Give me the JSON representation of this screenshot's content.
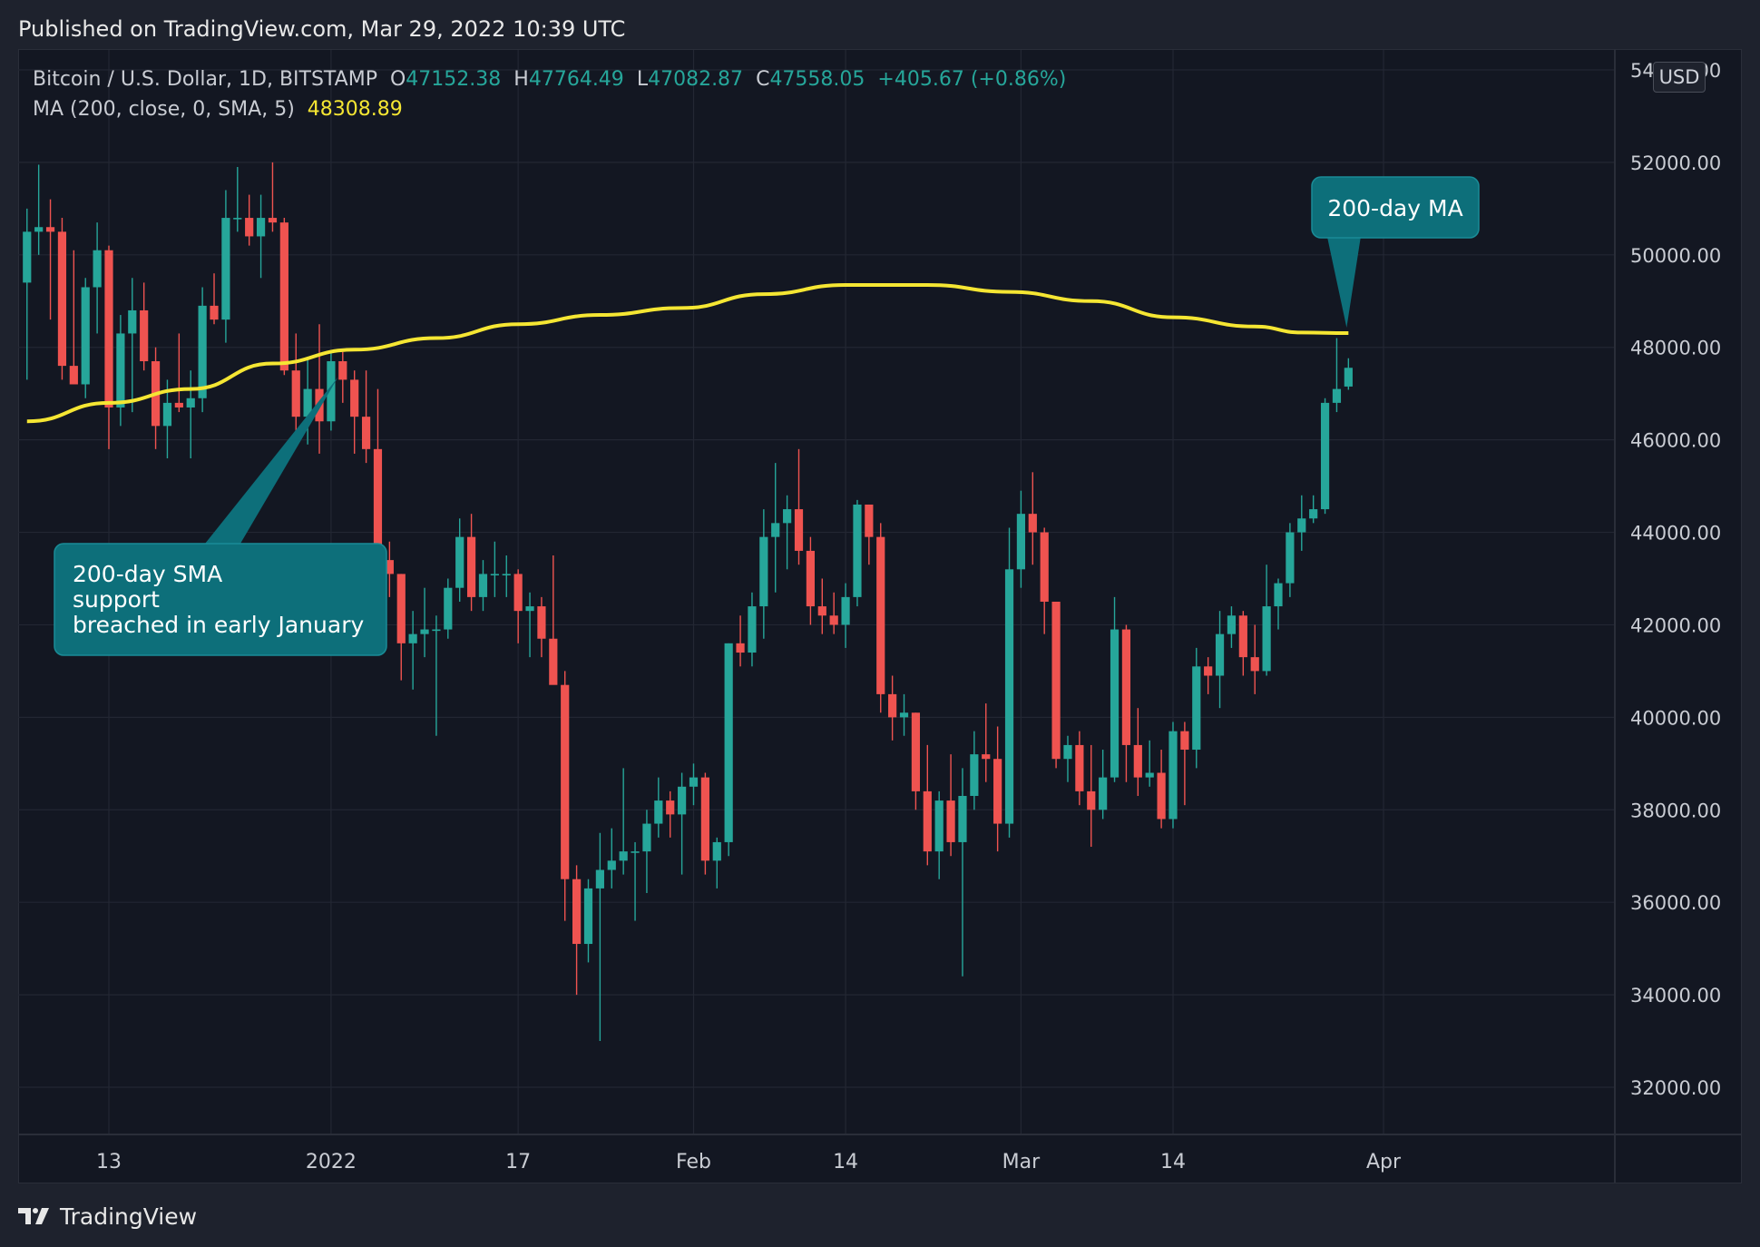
{
  "header": {
    "published": "Published on TradingView.com, Mar 29, 2022 10:39 UTC"
  },
  "legend": {
    "symbol": "Bitcoin / U.S. Dollar, 1D, BITSTAMP",
    "open_label": "O",
    "open": "47152.38",
    "high_label": "H",
    "high": "47764.49",
    "low_label": "L",
    "low": "47082.87",
    "close_label": "C",
    "close": "47558.05",
    "change": "+405.67 (+0.86%)",
    "ma_label": "MA (200, close, 0, SMA, 5)",
    "ma_value": "48308.89"
  },
  "currency": "USD",
  "footer": {
    "brand": "TradingView"
  },
  "colors": {
    "up": "#26a69a",
    "down": "#ef5350",
    "ma": "#f5e633",
    "annotation": "#0d6f7a",
    "background": "#131722",
    "grid": "#232733"
  },
  "chart_data": {
    "type": "candlestick",
    "title": "Bitcoin / U.S. Dollar, 1D, BITSTAMP",
    "ylim": [
      31000,
      54500
    ],
    "y_ticks": [
      32000,
      34000,
      36000,
      38000,
      40000,
      42000,
      44000,
      46000,
      48000,
      50000,
      52000,
      54000
    ],
    "y_tick_labels": [
      "32000.00",
      "34000.00",
      "36000.00",
      "38000.00",
      "40000.00",
      "42000.00",
      "44000.00",
      "46000.00",
      "48000.00",
      "50000.00",
      "52000.00",
      "54000.00"
    ],
    "x_ticks": [
      {
        "label": "13",
        "date": "2021-12-13"
      },
      {
        "label": "2022",
        "date": "2022-01-01"
      },
      {
        "label": "17",
        "date": "2022-01-17"
      },
      {
        "label": "Feb",
        "date": "2022-02-01"
      },
      {
        "label": "14",
        "date": "2022-02-14"
      },
      {
        "label": "Mar",
        "date": "2022-03-01"
      },
      {
        "label": "14",
        "date": "2022-03-14"
      },
      {
        "label": "Apr",
        "date": "2022-04-01"
      }
    ],
    "candles": [
      {
        "date": "2021-12-06",
        "o": 49400,
        "h": 51000,
        "l": 47300,
        "c": 50500
      },
      {
        "date": "2021-12-07",
        "o": 50500,
        "h": 51950,
        "l": 50000,
        "c": 50600
      },
      {
        "date": "2021-12-08",
        "o": 50600,
        "h": 51200,
        "l": 48600,
        "c": 50500
      },
      {
        "date": "2021-12-09",
        "o": 50500,
        "h": 50800,
        "l": 47300,
        "c": 47600
      },
      {
        "date": "2021-12-10",
        "o": 47600,
        "h": 50100,
        "l": 47200,
        "c": 47200
      },
      {
        "date": "2021-12-11",
        "o": 47200,
        "h": 49500,
        "l": 46900,
        "c": 49300
      },
      {
        "date": "2021-12-12",
        "o": 49300,
        "h": 50700,
        "l": 48300,
        "c": 50100
      },
      {
        "date": "2021-12-13",
        "o": 50100,
        "h": 50200,
        "l": 45800,
        "c": 46700
      },
      {
        "date": "2021-12-14",
        "o": 46700,
        "h": 48700,
        "l": 46300,
        "c": 48300
      },
      {
        "date": "2021-12-15",
        "o": 48300,
        "h": 49500,
        "l": 46600,
        "c": 48800
      },
      {
        "date": "2021-12-16",
        "o": 48800,
        "h": 49400,
        "l": 47500,
        "c": 47700
      },
      {
        "date": "2021-12-17",
        "o": 47700,
        "h": 48000,
        "l": 45800,
        "c": 46300
      },
      {
        "date": "2021-12-18",
        "o": 46300,
        "h": 47300,
        "l": 45600,
        "c": 46800
      },
      {
        "date": "2021-12-19",
        "o": 46800,
        "h": 48300,
        "l": 46600,
        "c": 46700
      },
      {
        "date": "2021-12-20",
        "o": 46700,
        "h": 47500,
        "l": 45600,
        "c": 46900
      },
      {
        "date": "2021-12-21",
        "o": 46900,
        "h": 49300,
        "l": 46600,
        "c": 48900
      },
      {
        "date": "2021-12-22",
        "o": 48900,
        "h": 49600,
        "l": 48500,
        "c": 48600
      },
      {
        "date": "2021-12-23",
        "o": 48600,
        "h": 51400,
        "l": 48100,
        "c": 50800
      },
      {
        "date": "2021-12-24",
        "o": 50800,
        "h": 51900,
        "l": 50500,
        "c": 50800
      },
      {
        "date": "2021-12-25",
        "o": 50800,
        "h": 51300,
        "l": 50200,
        "c": 50400
      },
      {
        "date": "2021-12-26",
        "o": 50400,
        "h": 51300,
        "l": 49500,
        "c": 50800
      },
      {
        "date": "2021-12-27",
        "o": 50800,
        "h": 52000,
        "l": 50500,
        "c": 50700
      },
      {
        "date": "2021-12-28",
        "o": 50700,
        "h": 50800,
        "l": 47400,
        "c": 47500
      },
      {
        "date": "2021-12-29",
        "o": 47500,
        "h": 48300,
        "l": 46200,
        "c": 46500
      },
      {
        "date": "2021-12-30",
        "o": 46500,
        "h": 47800,
        "l": 45900,
        "c": 47100
      },
      {
        "date": "2021-12-31",
        "o": 47100,
        "h": 48500,
        "l": 45700,
        "c": 46400
      },
      {
        "date": "2022-01-01",
        "o": 46400,
        "h": 47900,
        "l": 46200,
        "c": 47700
      },
      {
        "date": "2022-01-02",
        "o": 47700,
        "h": 47900,
        "l": 46800,
        "c": 47300
      },
      {
        "date": "2022-01-03",
        "o": 47300,
        "h": 47500,
        "l": 45700,
        "c": 46500
      },
      {
        "date": "2022-01-04",
        "o": 46500,
        "h": 47500,
        "l": 45500,
        "c": 45800
      },
      {
        "date": "2022-01-05",
        "o": 45800,
        "h": 47100,
        "l": 42500,
        "c": 43400
      },
      {
        "date": "2022-01-06",
        "o": 43400,
        "h": 43800,
        "l": 42600,
        "c": 43100
      },
      {
        "date": "2022-01-07",
        "o": 43100,
        "h": 43100,
        "l": 40800,
        "c": 41600
      },
      {
        "date": "2022-01-08",
        "o": 41600,
        "h": 42300,
        "l": 40600,
        "c": 41800
      },
      {
        "date": "2022-01-09",
        "o": 41800,
        "h": 42800,
        "l": 41300,
        "c": 41900
      },
      {
        "date": "2022-01-10",
        "o": 41900,
        "h": 42200,
        "l": 39600,
        "c": 41900
      },
      {
        "date": "2022-01-11",
        "o": 41900,
        "h": 43000,
        "l": 41700,
        "c": 42800
      },
      {
        "date": "2022-01-12",
        "o": 42800,
        "h": 44300,
        "l": 42500,
        "c": 43900
      },
      {
        "date": "2022-01-13",
        "o": 43900,
        "h": 44400,
        "l": 42300,
        "c": 42600
      },
      {
        "date": "2022-01-14",
        "o": 42600,
        "h": 43400,
        "l": 42300,
        "c": 43100
      },
      {
        "date": "2022-01-15",
        "o": 43100,
        "h": 43800,
        "l": 42600,
        "c": 43100
      },
      {
        "date": "2022-01-16",
        "o": 43100,
        "h": 43500,
        "l": 42600,
        "c": 43100
      },
      {
        "date": "2022-01-17",
        "o": 43100,
        "h": 43200,
        "l": 41600,
        "c": 42300
      },
      {
        "date": "2022-01-18",
        "o": 42300,
        "h": 42700,
        "l": 41300,
        "c": 42400
      },
      {
        "date": "2022-01-19",
        "o": 42400,
        "h": 42600,
        "l": 41300,
        "c": 41700
      },
      {
        "date": "2022-01-20",
        "o": 41700,
        "h": 43500,
        "l": 40800,
        "c": 40700
      },
      {
        "date": "2022-01-21",
        "o": 40700,
        "h": 41000,
        "l": 35600,
        "c": 36500
      },
      {
        "date": "2022-01-22",
        "o": 36500,
        "h": 36800,
        "l": 34000,
        "c": 35100
      },
      {
        "date": "2022-01-23",
        "o": 35100,
        "h": 36500,
        "l": 34700,
        "c": 36300
      },
      {
        "date": "2022-01-24",
        "o": 36300,
        "h": 37500,
        "l": 33000,
        "c": 36700
      },
      {
        "date": "2022-01-25",
        "o": 36700,
        "h": 37600,
        "l": 36300,
        "c": 36900
      },
      {
        "date": "2022-01-26",
        "o": 36900,
        "h": 38900,
        "l": 36600,
        "c": 37100
      },
      {
        "date": "2022-01-27",
        "o": 37100,
        "h": 37300,
        "l": 35600,
        "c": 37100
      },
      {
        "date": "2022-01-28",
        "o": 37100,
        "h": 38000,
        "l": 36200,
        "c": 37700
      },
      {
        "date": "2022-01-29",
        "o": 37700,
        "h": 38700,
        "l": 37400,
        "c": 38200
      },
      {
        "date": "2022-01-30",
        "o": 38200,
        "h": 38400,
        "l": 37400,
        "c": 37900
      },
      {
        "date": "2022-01-31",
        "o": 37900,
        "h": 38800,
        "l": 36600,
        "c": 38500
      },
      {
        "date": "2022-02-01",
        "o": 38500,
        "h": 39000,
        "l": 38100,
        "c": 38700
      },
      {
        "date": "2022-02-02",
        "o": 38700,
        "h": 38800,
        "l": 36600,
        "c": 36900
      },
      {
        "date": "2022-02-03",
        "o": 36900,
        "h": 37400,
        "l": 36300,
        "c": 37300
      },
      {
        "date": "2022-02-04",
        "o": 37300,
        "h": 41600,
        "l": 37000,
        "c": 41600
      },
      {
        "date": "2022-02-05",
        "o": 41600,
        "h": 42200,
        "l": 41100,
        "c": 41400
      },
      {
        "date": "2022-02-06",
        "o": 41400,
        "h": 42700,
        "l": 41100,
        "c": 42400
      },
      {
        "date": "2022-02-07",
        "o": 42400,
        "h": 44500,
        "l": 41700,
        "c": 43900
      },
      {
        "date": "2022-02-08",
        "o": 43900,
        "h": 45500,
        "l": 42700,
        "c": 44200
      },
      {
        "date": "2022-02-09",
        "o": 44200,
        "h": 44800,
        "l": 43200,
        "c": 44500
      },
      {
        "date": "2022-02-10",
        "o": 44500,
        "h": 45800,
        "l": 43300,
        "c": 43600
      },
      {
        "date": "2022-02-11",
        "o": 43600,
        "h": 43900,
        "l": 42000,
        "c": 42400
      },
      {
        "date": "2022-02-12",
        "o": 42400,
        "h": 43000,
        "l": 41800,
        "c": 42200
      },
      {
        "date": "2022-02-13",
        "o": 42200,
        "h": 42700,
        "l": 41800,
        "c": 42000
      },
      {
        "date": "2022-02-14",
        "o": 42000,
        "h": 42900,
        "l": 41500,
        "c": 42600
      },
      {
        "date": "2022-02-15",
        "o": 42600,
        "h": 44700,
        "l": 42400,
        "c": 44600
      },
      {
        "date": "2022-02-16",
        "o": 44600,
        "h": 44600,
        "l": 43300,
        "c": 43900
      },
      {
        "date": "2022-02-17",
        "o": 43900,
        "h": 44200,
        "l": 40100,
        "c": 40500
      },
      {
        "date": "2022-02-18",
        "o": 40500,
        "h": 40900,
        "l": 39500,
        "c": 40000
      },
      {
        "date": "2022-02-19",
        "o": 40000,
        "h": 40500,
        "l": 39600,
        "c": 40100
      },
      {
        "date": "2022-02-20",
        "o": 40100,
        "h": 40100,
        "l": 38000,
        "c": 38400
      },
      {
        "date": "2022-02-21",
        "o": 38400,
        "h": 39400,
        "l": 36800,
        "c": 37100
      },
      {
        "date": "2022-02-22",
        "o": 37100,
        "h": 38400,
        "l": 36500,
        "c": 38200
      },
      {
        "date": "2022-02-23",
        "o": 38200,
        "h": 39200,
        "l": 37000,
        "c": 37300
      },
      {
        "date": "2022-02-24",
        "o": 37300,
        "h": 38900,
        "l": 34400,
        "c": 38300
      },
      {
        "date": "2022-02-25",
        "o": 38300,
        "h": 39700,
        "l": 38000,
        "c": 39200
      },
      {
        "date": "2022-02-26",
        "o": 39200,
        "h": 40300,
        "l": 38600,
        "c": 39100
      },
      {
        "date": "2022-02-27",
        "o": 39100,
        "h": 39800,
        "l": 37100,
        "c": 37700
      },
      {
        "date": "2022-02-28",
        "o": 37700,
        "h": 44100,
        "l": 37400,
        "c": 43200
      },
      {
        "date": "2022-03-01",
        "o": 43200,
        "h": 44900,
        "l": 42800,
        "c": 44400
      },
      {
        "date": "2022-03-02",
        "o": 44400,
        "h": 45300,
        "l": 43300,
        "c": 44000
      },
      {
        "date": "2022-03-03",
        "o": 44000,
        "h": 44100,
        "l": 41800,
        "c": 42500
      },
      {
        "date": "2022-03-04",
        "o": 42500,
        "h": 42500,
        "l": 38900,
        "c": 39100
      },
      {
        "date": "2022-03-05",
        "o": 39100,
        "h": 39600,
        "l": 38600,
        "c": 39400
      },
      {
        "date": "2022-03-06",
        "o": 39400,
        "h": 39700,
        "l": 38100,
        "c": 38400
      },
      {
        "date": "2022-03-07",
        "o": 38400,
        "h": 39400,
        "l": 37200,
        "c": 38000
      },
      {
        "date": "2022-03-08",
        "o": 38000,
        "h": 39300,
        "l": 37800,
        "c": 38700
      },
      {
        "date": "2022-03-09",
        "o": 38700,
        "h": 42600,
        "l": 38600,
        "c": 41900
      },
      {
        "date": "2022-03-10",
        "o": 41900,
        "h": 42000,
        "l": 38600,
        "c": 39400
      },
      {
        "date": "2022-03-11",
        "o": 39400,
        "h": 40200,
        "l": 38300,
        "c": 38700
      },
      {
        "date": "2022-03-12",
        "o": 38700,
        "h": 39500,
        "l": 38500,
        "c": 38800
      },
      {
        "date": "2022-03-13",
        "o": 38800,
        "h": 39300,
        "l": 37600,
        "c": 37800
      },
      {
        "date": "2022-03-14",
        "o": 37800,
        "h": 39900,
        "l": 37600,
        "c": 39700
      },
      {
        "date": "2022-03-15",
        "o": 39700,
        "h": 39900,
        "l": 38100,
        "c": 39300
      },
      {
        "date": "2022-03-16",
        "o": 39300,
        "h": 41500,
        "l": 38900,
        "c": 41100
      },
      {
        "date": "2022-03-17",
        "o": 41100,
        "h": 41300,
        "l": 40500,
        "c": 40900
      },
      {
        "date": "2022-03-18",
        "o": 40900,
        "h": 42300,
        "l": 40200,
        "c": 41800
      },
      {
        "date": "2022-03-19",
        "o": 41800,
        "h": 42400,
        "l": 41500,
        "c": 42200
      },
      {
        "date": "2022-03-20",
        "o": 42200,
        "h": 42300,
        "l": 40900,
        "c": 41300
      },
      {
        "date": "2022-03-21",
        "o": 41300,
        "h": 42000,
        "l": 40500,
        "c": 41000
      },
      {
        "date": "2022-03-22",
        "o": 41000,
        "h": 43300,
        "l": 40900,
        "c": 42400
      },
      {
        "date": "2022-03-23",
        "o": 42400,
        "h": 43000,
        "l": 41900,
        "c": 42900
      },
      {
        "date": "2022-03-24",
        "o": 42900,
        "h": 44200,
        "l": 42600,
        "c": 44000
      },
      {
        "date": "2022-03-25",
        "o": 44000,
        "h": 44800,
        "l": 43600,
        "c": 44300
      },
      {
        "date": "2022-03-26",
        "o": 44300,
        "h": 44800,
        "l": 44200,
        "c": 44500
      },
      {
        "date": "2022-03-27",
        "o": 44500,
        "h": 46900,
        "l": 44400,
        "c": 46800
      },
      {
        "date": "2022-03-28",
        "o": 46800,
        "h": 48200,
        "l": 46600,
        "c": 47100
      },
      {
        "date": "2022-03-29",
        "o": 47152.38,
        "h": 47764.49,
        "l": 47082.87,
        "c": 47558.05
      }
    ],
    "ma_series": {
      "name": "MA (200, close, 0, SMA, 5)",
      "points": [
        [
          "2021-12-06",
          46400
        ],
        [
          "2021-12-13",
          46800
        ],
        [
          "2021-12-20",
          47100
        ],
        [
          "2021-12-27",
          47650
        ],
        [
          "2022-01-03",
          47950
        ],
        [
          "2022-01-10",
          48200
        ],
        [
          "2022-01-17",
          48500
        ],
        [
          "2022-01-24",
          48700
        ],
        [
          "2022-01-31",
          48850
        ],
        [
          "2022-02-07",
          49150
        ],
        [
          "2022-02-14",
          49350
        ],
        [
          "2022-02-21",
          49350
        ],
        [
          "2022-02-28",
          49200
        ],
        [
          "2022-03-07",
          49000
        ],
        [
          "2022-03-14",
          48650
        ],
        [
          "2022-03-21",
          48450
        ],
        [
          "2022-03-25",
          48320
        ],
        [
          "2022-03-29",
          48309
        ]
      ]
    },
    "annotations": [
      {
        "text": [
          "200-day MA"
        ],
        "target": {
          "date": "2022-03-29",
          "price": 48309
        }
      },
      {
        "text": [
          "200-day SMA",
          "support",
          "breached in early January"
        ],
        "target": {
          "date": "2022-01-01",
          "price": 47600
        }
      }
    ]
  }
}
